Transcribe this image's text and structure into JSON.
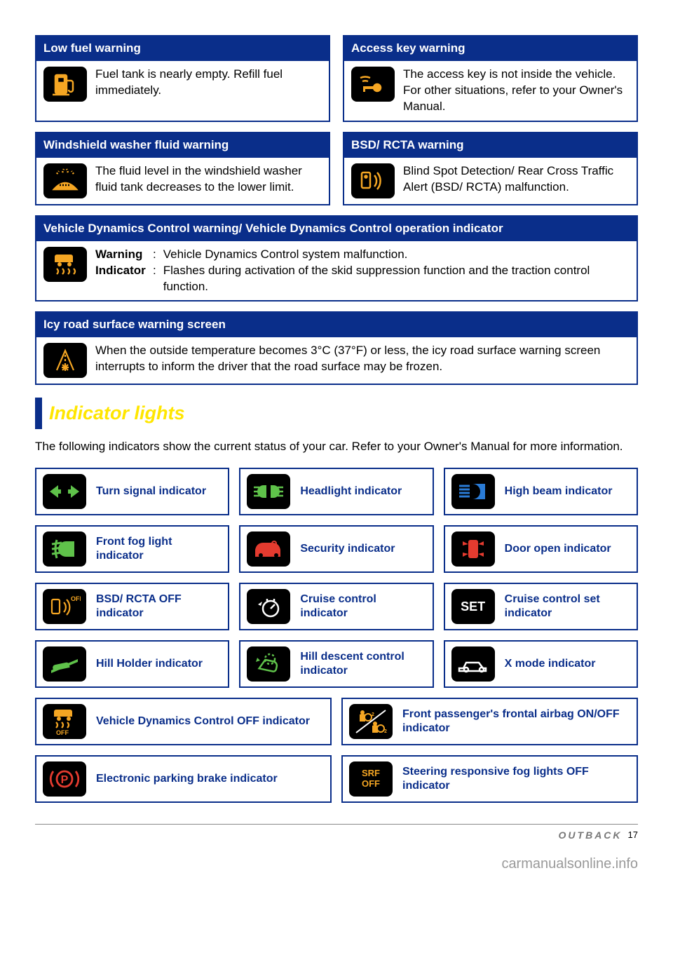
{
  "colors": {
    "border": "#0a2e8a",
    "header_bg": "#0a2e8a",
    "header_text": "#ffffff",
    "body_text": "#000000",
    "section_title": "#ffe600",
    "indicator_label": "#0a2e8a",
    "icon_bg": "#000000",
    "amber": "#f5a623",
    "green": "#5fc24a",
    "red": "#e43b2f",
    "blue": "#2a7bd6",
    "white": "#ffffff"
  },
  "warnings": {
    "low_fuel": {
      "title": "Low fuel warning",
      "text": "Fuel tank is nearly empty. Refill fuel immediately.",
      "icon": "fuel-pump",
      "icon_color": "amber"
    },
    "access_key": {
      "title": "Access key warning",
      "text": "The access key is not inside the vehicle. For other situations, refer to your Owner's Manual.",
      "icon": "key-wave",
      "icon_color": "amber"
    },
    "washer": {
      "title": "Windshield washer fluid warning",
      "text": "The fluid level in the windshield washer fluid tank decreases to the lower limit.",
      "icon": "washer-fluid",
      "icon_color": "amber"
    },
    "bsd": {
      "title": "BSD/ RCTA warning",
      "text": "Blind Spot Detection/ Rear Cross Traffic Alert (BSD/ RCTA) malfunction.",
      "icon": "bsd-rcta",
      "icon_color": "amber"
    },
    "vdc": {
      "title": "Vehicle Dynamics Control warning/ Vehicle Dynamics Control operation indicator",
      "icon": "skid-car",
      "icon_color": "amber",
      "rows": [
        {
          "label": "Warning",
          "text": "Vehicle Dynamics Control system malfunction."
        },
        {
          "label": "Indicator",
          "text": "Flashes during activation of the skid suppression function and the traction control function."
        }
      ]
    },
    "icy": {
      "title": "Icy road surface warning screen",
      "text": "When the outside temperature becomes 3°C (37°F) or less, the icy road surface warning screen interrupts to inform the driver that the road surface may be frozen.",
      "icon": "icy-road",
      "icon_color": "amber"
    }
  },
  "section": {
    "title": "Indicator lights",
    "intro": "The following indicators show the current status of your car. Refer to your Owner's Manual for more information."
  },
  "indicators": {
    "row1": [
      {
        "label": "Turn signal indicator",
        "icon": "turn-signal",
        "icon_color": "green"
      },
      {
        "label": "Headlight indicator",
        "icon": "headlight",
        "icon_color": "green"
      },
      {
        "label": "High beam indicator",
        "icon": "high-beam",
        "icon_color": "blue"
      }
    ],
    "row2": [
      {
        "label": "Front fog light indicator",
        "icon": "fog-light",
        "icon_color": "green"
      },
      {
        "label": "Security indicator",
        "icon": "security-lock",
        "icon_color": "red"
      },
      {
        "label": "Door open indicator",
        "icon": "door-open",
        "icon_color": "red"
      }
    ],
    "row3": [
      {
        "label": "BSD/ RCTA OFF indicator",
        "icon": "bsd-off",
        "icon_color": "amber"
      },
      {
        "label": "Cruise control indicator",
        "icon": "cruise",
        "icon_color": "white"
      },
      {
        "label": "Cruise control set indicator",
        "icon": "set-text",
        "icon_color": "white",
        "text": "SET"
      }
    ],
    "row4": [
      {
        "label": "Hill Holder indicator",
        "icon": "hill-holder",
        "icon_color": "green"
      },
      {
        "label": "Hill descent control indicator",
        "icon": "hill-descent",
        "icon_color": "green"
      },
      {
        "label": "X mode indicator",
        "icon": "x-mode",
        "icon_color": "white"
      }
    ],
    "row5": [
      {
        "label": "Vehicle Dynamics Control OFF indicator",
        "icon": "vdc-off",
        "icon_color": "amber"
      },
      {
        "label": "Front passenger's frontal airbag ON/OFF indicator",
        "icon": "airbag-onoff",
        "icon_color": "amber"
      }
    ],
    "row6": [
      {
        "label": "Electronic parking brake indicator",
        "icon": "parking-brake",
        "icon_color": "red",
        "text": "P"
      },
      {
        "label": "Steering responsive fog lights OFF indicator",
        "icon": "srf-off",
        "icon_color": "amber",
        "text": "SRF OFF"
      }
    ]
  },
  "footer": {
    "brand": "OUTBACK",
    "page": "17",
    "watermark": "carmanualsonline.info"
  }
}
